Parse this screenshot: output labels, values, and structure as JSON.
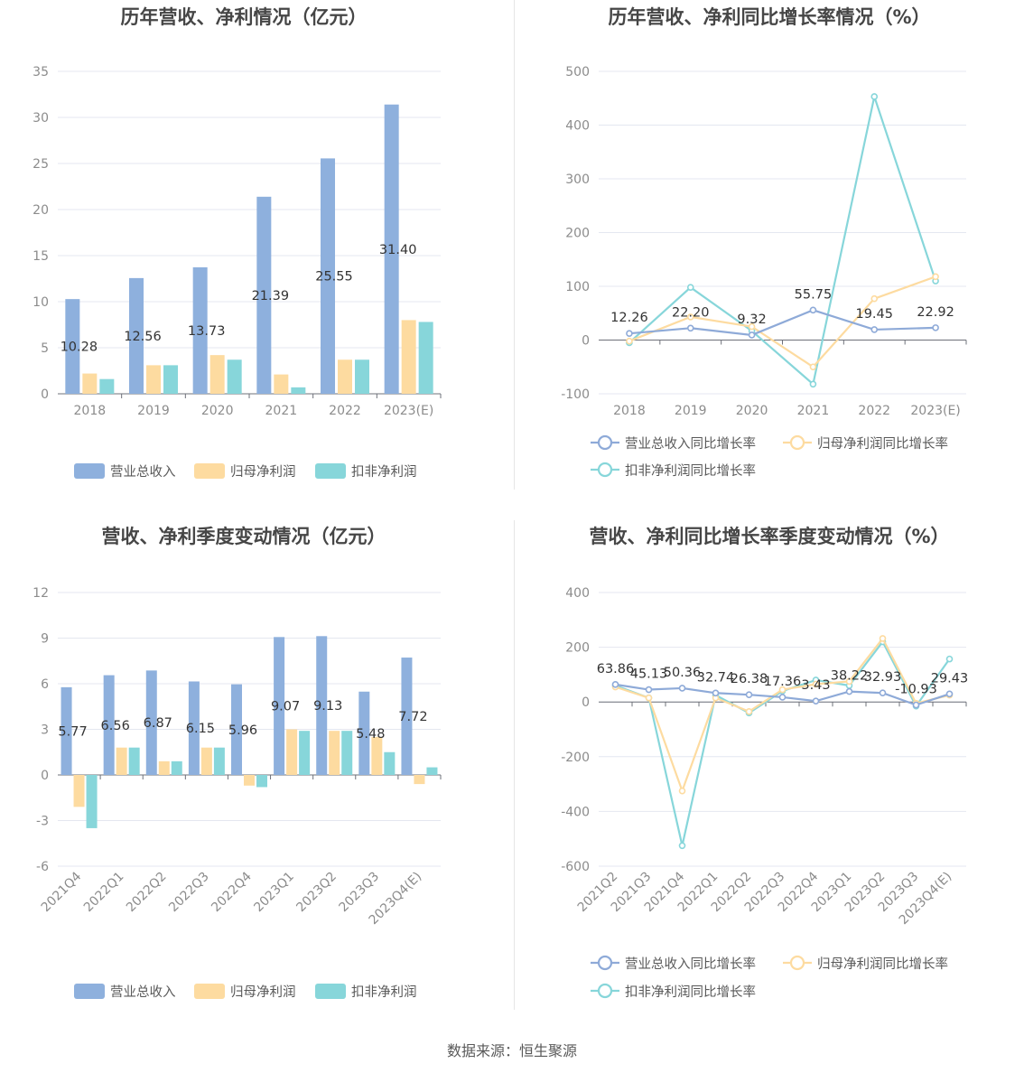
{
  "footer": {
    "source": "数据来源：恒生聚源"
  },
  "chart_data": [
    {
      "id": "annual-bar",
      "type": "bar",
      "title": "历年营收、净利情况（亿元）",
      "categories": [
        "2018",
        "2019",
        "2020",
        "2021",
        "2022",
        "2023(E)"
      ],
      "ylim": [
        0,
        35
      ],
      "yticks": [
        0,
        5,
        10,
        15,
        20,
        25,
        30,
        35
      ],
      "grid": true,
      "legend_position": "bottom",
      "series": [
        {
          "name": "营业总收入",
          "color": "#8eb0dd",
          "values": [
            10.28,
            12.56,
            13.73,
            21.39,
            25.55,
            31.4
          ],
          "labels": [
            "10.28",
            "12.56",
            "13.73",
            "21.39",
            "25.55",
            "31.40"
          ]
        },
        {
          "name": "归母净利润",
          "color": "#fddba0",
          "values": [
            2.2,
            3.1,
            4.2,
            2.1,
            3.7,
            8.0
          ]
        },
        {
          "name": "扣非净利润",
          "color": "#87d6da",
          "values": [
            1.6,
            3.1,
            3.7,
            0.7,
            3.7,
            7.8
          ]
        }
      ]
    },
    {
      "id": "annual-line",
      "type": "line",
      "title": "历年营收、净利同比增长率情况（%）",
      "categories": [
        "2018",
        "2019",
        "2020",
        "2021",
        "2022",
        "2023(E)"
      ],
      "ylim": [
        -100,
        500
      ],
      "yticks": [
        -100,
        0,
        100,
        200,
        300,
        400,
        500
      ],
      "grid": true,
      "legend_position": "bottom",
      "series": [
        {
          "name": "营业总收入同比增长率",
          "color": "#8eaad8",
          "values": [
            12.26,
            22.2,
            9.32,
            55.75,
            19.45,
            22.92
          ],
          "labels": [
            "12.26",
            "22.20",
            "9.32",
            "55.75",
            "19.45",
            "22.92"
          ]
        },
        {
          "name": "归母净利润同比增长率",
          "color": "#fddba0",
          "values": [
            -2,
            43,
            25,
            -50,
            77,
            118
          ]
        },
        {
          "name": "扣非净利润同比增长率",
          "color": "#87d6da",
          "values": [
            -5,
            98,
            17,
            -82,
            453,
            110
          ]
        }
      ]
    },
    {
      "id": "quarter-bar",
      "type": "bar",
      "title": "营收、净利季度变动情况（亿元）",
      "categories": [
        "2021Q4",
        "2022Q1",
        "2022Q2",
        "2022Q3",
        "2022Q4",
        "2023Q1",
        "2023Q2",
        "2023Q3",
        "2023Q4(E)"
      ],
      "ylim": [
        -6,
        12
      ],
      "yticks": [
        -6,
        -3,
        0,
        3,
        6,
        9,
        12
      ],
      "grid": true,
      "legend_position": "bottom",
      "series": [
        {
          "name": "营业总收入",
          "color": "#8eb0dd",
          "values": [
            5.77,
            6.56,
            6.87,
            6.15,
            5.96,
            9.07,
            9.13,
            5.48,
            7.72
          ],
          "labels": [
            "5.77",
            "6.56",
            "6.87",
            "6.15",
            "5.96",
            "9.07",
            "9.13",
            "5.48",
            "7.72"
          ]
        },
        {
          "name": "归母净利润",
          "color": "#fddba0",
          "values": [
            -2.1,
            1.8,
            0.9,
            1.8,
            -0.7,
            3.0,
            2.9,
            2.5,
            -0.6
          ]
        },
        {
          "name": "扣非净利润",
          "color": "#87d6da",
          "values": [
            -3.5,
            1.8,
            0.9,
            1.8,
            -0.8,
            2.9,
            2.9,
            1.5,
            0.5
          ]
        }
      ]
    },
    {
      "id": "quarter-line",
      "type": "line",
      "title": "营收、净利同比增长率季度变动情况（%）",
      "categories": [
        "2021Q2",
        "2021Q3",
        "2021Q4",
        "2022Q1",
        "2022Q2",
        "2022Q3",
        "2022Q4",
        "2023Q1",
        "2023Q2",
        "2023Q3",
        "2023Q4(E)"
      ],
      "ylim": [
        -600,
        400
      ],
      "yticks": [
        -600,
        -400,
        -200,
        0,
        200,
        400
      ],
      "grid": true,
      "legend_position": "bottom",
      "series": [
        {
          "name": "营业总收入同比增长率",
          "color": "#8eaad8",
          "values": [
            63.86,
            45.13,
            50.36,
            32.74,
            26.38,
            17.36,
            3.43,
            38.22,
            32.93,
            -10.93,
            29.43
          ],
          "labels": [
            "63.86",
            "45.13",
            "50.36",
            "32.74",
            "26.38",
            "17.36",
            "3.43",
            "38.22",
            "32.93",
            "-10.93",
            "29.43"
          ]
        },
        {
          "name": "归母净利润同比增长率",
          "color": "#fddba0",
          "values": [
            55,
            15,
            -325,
            15,
            -35,
            45,
            65,
            75,
            232,
            -5,
            25
          ]
        },
        {
          "name": "扣非净利润同比增长率",
          "color": "#87d6da",
          "values": [
            60,
            15,
            -525,
            25,
            -40,
            40,
            80,
            60,
            220,
            -15,
            157
          ]
        }
      ]
    }
  ]
}
